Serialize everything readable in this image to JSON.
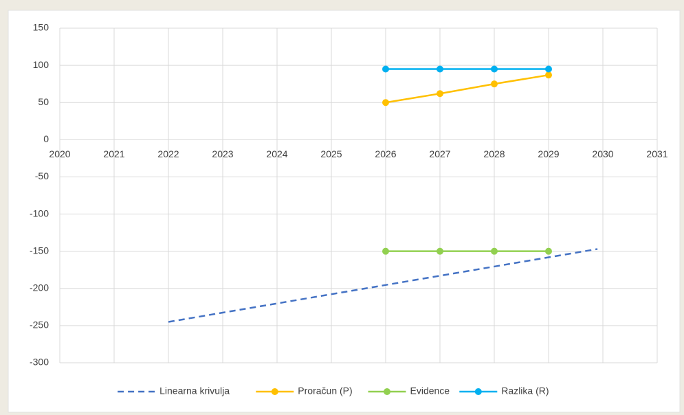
{
  "chart_data": {
    "type": "line",
    "xlim": [
      2020,
      2031
    ],
    "xticks": [
      2020,
      2021,
      2022,
      2023,
      2024,
      2025,
      2026,
      2027,
      2028,
      2029,
      2030,
      2031
    ],
    "ylim": [
      -300,
      150
    ],
    "yticks": [
      -300,
      -250,
      -200,
      -150,
      -100,
      -50,
      0,
      50,
      100,
      150
    ],
    "grid": true,
    "legend": "bottom",
    "series": [
      {
        "name": "Linearna krivulja",
        "color": "#4472c4",
        "dashed": true,
        "markers": false,
        "x": [
          2022,
          2029.9
        ],
        "values": [
          -245,
          -147
        ]
      },
      {
        "name": "Proračun (P)",
        "color": "#ffc000",
        "dashed": false,
        "markers": true,
        "x": [
          2026,
          2027,
          2028,
          2029
        ],
        "values": [
          50,
          62,
          75,
          87
        ]
      },
      {
        "name": "Evidence",
        "color": "#92d050",
        "dashed": false,
        "markers": true,
        "x": [
          2026,
          2027,
          2028,
          2029
        ],
        "values": [
          -150,
          -150,
          -150,
          -150
        ]
      },
      {
        "name": "Razlika (R)",
        "color": "#00b0f0",
        "dashed": false,
        "markers": true,
        "x": [
          2026,
          2027,
          2028,
          2029
        ],
        "values": [
          95,
          95,
          95,
          95
        ]
      }
    ]
  }
}
